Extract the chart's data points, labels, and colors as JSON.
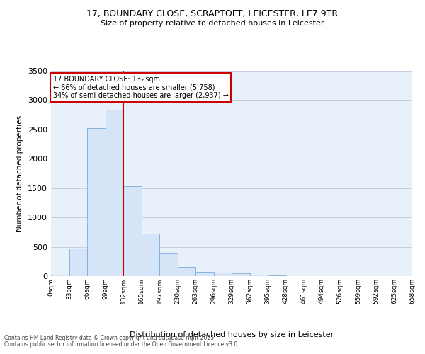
{
  "title1": "17, BOUNDARY CLOSE, SCRAPTOFT, LEICESTER, LE7 9TR",
  "title2": "Size of property relative to detached houses in Leicester",
  "xlabel": "Distribution of detached houses by size in Leicester",
  "ylabel": "Number of detached properties",
  "bar_values": [
    20,
    470,
    2520,
    2840,
    1530,
    730,
    390,
    155,
    75,
    55,
    50,
    20,
    10,
    5,
    0,
    0,
    0,
    0,
    0,
    0
  ],
  "bar_labels": [
    "0sqm",
    "33sqm",
    "66sqm",
    "99sqm",
    "132sqm",
    "165sqm",
    "197sqm",
    "230sqm",
    "263sqm",
    "296sqm",
    "329sqm",
    "362sqm",
    "395sqm",
    "428sqm",
    "461sqm",
    "494sqm",
    "526sqm",
    "559sqm",
    "592sqm",
    "625sqm",
    "658sqm"
  ],
  "bar_color": "#d6e4f7",
  "bar_edge_color": "#7aacda",
  "vline_color": "#cc0000",
  "annotation_text": "17 BOUNDARY CLOSE: 132sqm\n← 66% of detached houses are smaller (5,758)\n34% of semi-detached houses are larger (2,937) →",
  "annotation_box_facecolor": "#ffffff",
  "annotation_box_edgecolor": "#cc0000",
  "ylim": [
    0,
    3500
  ],
  "yticks": [
    0,
    500,
    1000,
    1500,
    2000,
    2500,
    3000,
    3500
  ],
  "bg_color": "#e8f0fa",
  "grid_color": "#c5cfe0",
  "footnote1": "Contains HM Land Registry data © Crown copyright and database right 2025.",
  "footnote2": "Contains public sector information licensed under the Open Government Licence v3.0."
}
